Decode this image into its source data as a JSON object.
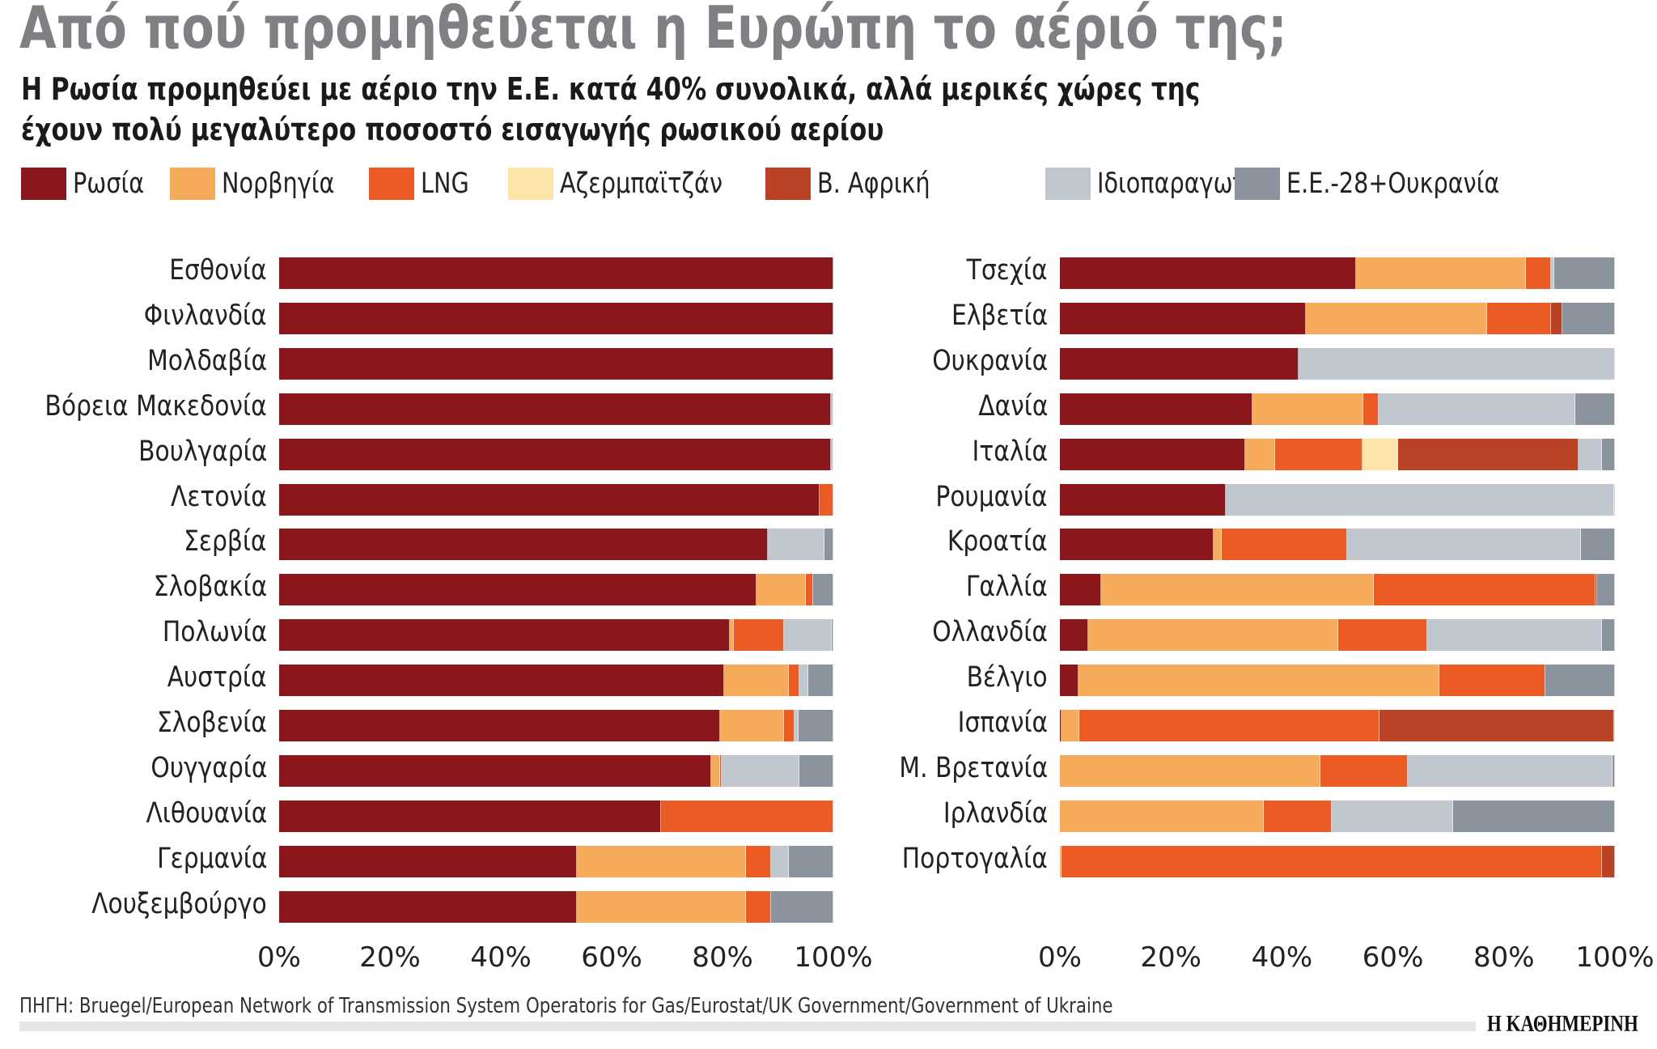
{
  "title": "Από πού προμηθεύεται η Ευρώπη το αέριό της;",
  "subtitle_line1": "Η Ρωσία προμηθεύει με αέριο την Ε.Ε. κατά 40% συνολικά, αλλά μερικές χώρες της",
  "subtitle_line2": "έχουν πολύ μεγαλύτερο ποσοστό εισαγωγής ρωσικού αερίου",
  "source": "ΠΗΓΗ: Bruegel/European Network of Transmission System Operatoris for Gas/Eurostat/UK Government/Government of Ukraine",
  "logo": "Η ΚΑΘΗΜΕΡΙΝΗ",
  "chart_data": {
    "type": "bar",
    "orientation": "horizontal",
    "stacked": true,
    "xlim": [
      0,
      100
    ],
    "ticks": [
      "0%",
      "20%",
      "40%",
      "60%",
      "80%",
      "100%"
    ],
    "legend_position": "top",
    "series": [
      {
        "name": "Ρωσία",
        "color": "#8b171c"
      },
      {
        "name": "Νορβηγία",
        "color": "#f5ab5a"
      },
      {
        "name": "LNG",
        "color": "#eb5b24"
      },
      {
        "name": "Αζερμπαϊτζάν",
        "color": "#fde4a8"
      },
      {
        "name": "Β. Αφρική",
        "color": "#bb4325"
      },
      {
        "name": "Ιδιοπαραγωγή",
        "color": "#c1c7cf"
      },
      {
        "name": "Ε.Ε.-28+Ουκρανία",
        "color": "#8b949e"
      }
    ],
    "panels": [
      {
        "categories": [
          "Εσθονία",
          "Φινλανδία",
          "Μολδαβία",
          "Βόρεια Μακεδονία",
          "Βουλγαρία",
          "Λετονία",
          "Σερβία",
          "Σλοβακία",
          "Πολωνία",
          "Αυστρία",
          "Σλοβενία",
          "Ουγγαρία",
          "Λιθουανία",
          "Γερμανία",
          "Λουξεμβούργο"
        ],
        "values": [
          [
            100,
            0,
            0,
            0,
            0,
            0,
            0
          ],
          [
            100,
            0,
            0,
            0,
            0,
            0,
            0
          ],
          [
            100,
            0,
            0,
            0,
            0,
            0,
            0
          ],
          [
            99.6,
            0,
            0,
            0,
            0,
            0.4,
            0
          ],
          [
            99.6,
            0,
            0,
            0,
            0,
            0.4,
            0
          ],
          [
            97.5,
            0,
            2.5,
            0,
            0,
            0,
            0
          ],
          [
            88.2,
            0,
            0,
            0,
            0,
            10.2,
            1.6
          ],
          [
            86.1,
            8.9,
            1.4,
            0,
            0,
            0,
            3.6
          ],
          [
            81.3,
            0.8,
            9.0,
            0,
            0,
            8.6,
            0.3
          ],
          [
            80.3,
            11.7,
            1.8,
            0,
            0,
            1.7,
            4.5
          ],
          [
            79.5,
            11.6,
            1.9,
            0,
            0,
            0.7,
            6.3
          ],
          [
            78.0,
            1.6,
            0.3,
            0,
            0,
            13.9,
            6.2
          ],
          [
            68.9,
            0,
            31.1,
            0,
            0,
            0,
            0
          ],
          [
            53.7,
            30.5,
            4.6,
            0,
            0,
            3.1,
            8.1
          ],
          [
            53.7,
            30.5,
            4.6,
            0,
            0,
            0,
            11.2
          ]
        ]
      },
      {
        "categories": [
          "Τσεχία",
          "Ελβετία",
          "Ουκρανία",
          "Δανία",
          "Ιταλία",
          "Ρουμανία",
          "Κροατία",
          "Γαλλία",
          "Ολλανδία",
          "Βέλγιο",
          "Ισπανία",
          "Μ. Βρετανία",
          "Ιρλανδία",
          "Πορτογαλία"
        ],
        "values": [
          [
            53.4,
            30.5,
            4.6,
            0,
            0,
            0.5,
            11.0
          ],
          [
            44.3,
            32.6,
            11.6,
            0,
            2.0,
            0,
            9.5
          ],
          [
            43.0,
            0,
            0,
            0,
            0,
            57.0,
            0
          ],
          [
            34.7,
            19.9,
            2.9,
            0,
            0,
            35.4,
            7.1
          ],
          [
            33.4,
            5.4,
            15.7,
            6.4,
            32.6,
            4.2,
            2.3
          ],
          [
            29.9,
            0,
            0,
            0,
            0,
            69.9,
            0.2
          ],
          [
            27.7,
            1.5,
            22.6,
            0,
            0,
            42.1,
            6.1
          ],
          [
            7.5,
            49.1,
            39.9,
            0,
            0.3,
            0,
            3.2
          ],
          [
            5.1,
            45.1,
            16.0,
            0,
            0,
            31.5,
            2.3
          ],
          [
            3.4,
            64.9,
            19.2,
            0,
            0,
            0,
            12.5
          ],
          [
            0.3,
            3.2,
            54.1,
            0,
            42.2,
            0.2,
            0
          ],
          [
            0,
            47.0,
            15.7,
            0,
            0,
            36.9,
            0.4
          ],
          [
            0,
            36.7,
            12.3,
            0,
            0,
            21.8,
            29.2
          ],
          [
            0,
            0.3,
            97.4,
            0,
            2.3,
            0,
            0
          ]
        ]
      }
    ]
  }
}
